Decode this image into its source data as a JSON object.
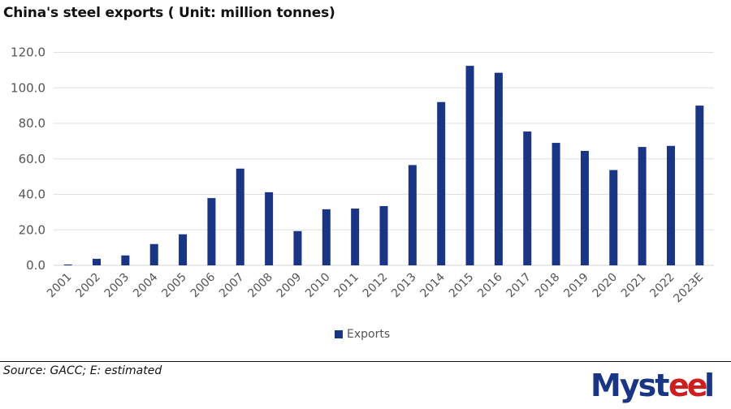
{
  "header": {
    "title": "China's steel exports ( Unit: million tonnes)"
  },
  "footer": {
    "source": "Source: GACC; E: estimated",
    "logo_text": "Mysteel"
  },
  "colors": {
    "bar": "#1a3583",
    "grid": "#e0e0e0",
    "axis_text": "#555555",
    "logo_blue": "#1a3583",
    "logo_red": "#cc1f1f"
  },
  "chart_data": {
    "type": "bar",
    "title": "China's steel exports ( Unit: million tonnes)",
    "xlabel": "",
    "ylabel": "",
    "ylim": [
      0,
      120
    ],
    "yticks": [
      "0.0",
      "20.0",
      "40.0",
      "60.0",
      "80.0",
      "100.0",
      "120.0"
    ],
    "grid": true,
    "legend_position": "bottom",
    "categories": [
      "2001",
      "2002",
      "2003",
      "2004",
      "2005",
      "2006",
      "2007",
      "2008",
      "2009",
      "2010",
      "2011",
      "2012",
      "2013",
      "2014",
      "2015",
      "2016",
      "2017",
      "2018",
      "2019",
      "2020",
      "2021",
      "2022",
      "2023E"
    ],
    "series": [
      {
        "name": "Exports",
        "values": [
          0.5,
          3.7,
          5.6,
          12.0,
          17.5,
          37.9,
          54.5,
          41.2,
          19.3,
          31.6,
          32.0,
          33.4,
          56.5,
          92.0,
          112.4,
          108.5,
          75.4,
          69.0,
          64.5,
          53.7,
          66.7,
          67.3,
          90.0
        ]
      }
    ]
  }
}
